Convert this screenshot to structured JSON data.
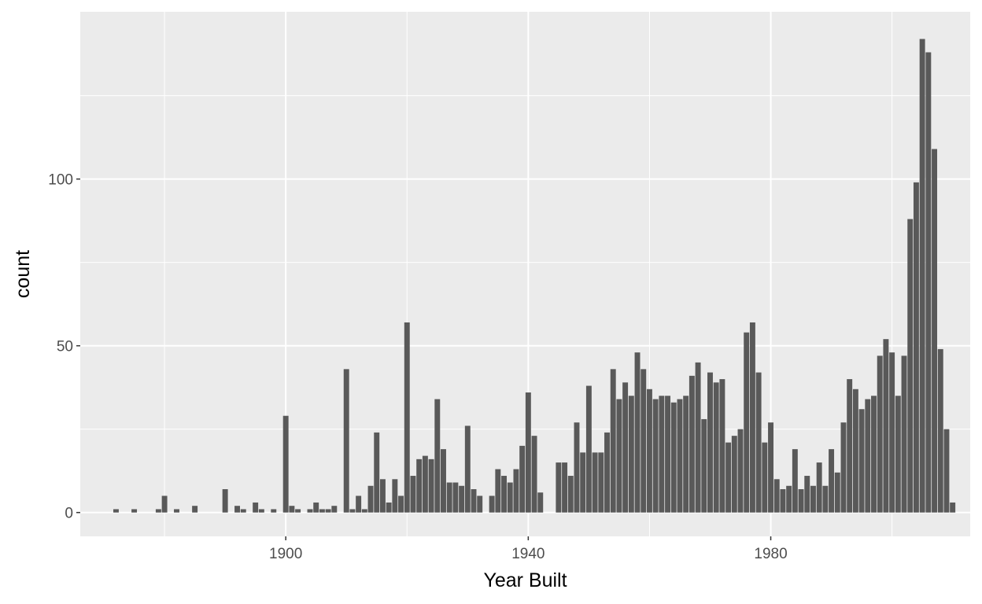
{
  "chart_data": {
    "type": "bar",
    "title": "",
    "xlabel": "Year Built",
    "ylabel": "count",
    "xlim": [
      1866.1,
      2012.9
    ],
    "ylim": [
      -7.15,
      150.15
    ],
    "x_ticks": [
      1900,
      1940,
      1980
    ],
    "x_minor_ticks": [
      1880,
      1920,
      1960,
      2000
    ],
    "y_ticks": [
      0,
      50,
      100
    ],
    "y_minor_ticks": [
      25,
      75,
      125
    ],
    "grid": true,
    "legend": "none",
    "colors": {
      "bar": "#595959",
      "panel": "#ebebeb",
      "grid": "#ffffff"
    },
    "x": [
      1872,
      1875,
      1879,
      1880,
      1882,
      1885,
      1890,
      1892,
      1893,
      1895,
      1896,
      1898,
      1900,
      1901,
      1902,
      1904,
      1905,
      1906,
      1907,
      1908,
      1910,
      1911,
      1912,
      1913,
      1914,
      1915,
      1916,
      1917,
      1918,
      1919,
      1920,
      1921,
      1922,
      1923,
      1924,
      1925,
      1926,
      1927,
      1928,
      1929,
      1930,
      1931,
      1932,
      1934,
      1935,
      1936,
      1937,
      1938,
      1939,
      1940,
      1941,
      1942,
      1945,
      1946,
      1947,
      1948,
      1949,
      1950,
      1951,
      1952,
      1953,
      1954,
      1955,
      1956,
      1957,
      1958,
      1959,
      1960,
      1961,
      1962,
      1963,
      1964,
      1965,
      1966,
      1967,
      1968,
      1969,
      1970,
      1971,
      1972,
      1973,
      1974,
      1975,
      1976,
      1977,
      1978,
      1979,
      1980,
      1981,
      1982,
      1983,
      1984,
      1985,
      1986,
      1987,
      1988,
      1989,
      1990,
      1991,
      1992,
      1993,
      1994,
      1995,
      1996,
      1997,
      1998,
      1999,
      2000,
      2001,
      2002,
      2003,
      2004,
      2005,
      2006,
      2007,
      2008,
      2009,
      2010
    ],
    "values": [
      1,
      1,
      1,
      5,
      1,
      2,
      7,
      2,
      1,
      3,
      1,
      1,
      29,
      2,
      1,
      1,
      3,
      1,
      1,
      2,
      43,
      1,
      5,
      1,
      8,
      24,
      10,
      3,
      10,
      5,
      57,
      11,
      16,
      17,
      16,
      34,
      19,
      9,
      9,
      8,
      26,
      7,
      5,
      5,
      13,
      11,
      9,
      13,
      20,
      36,
      23,
      6,
      15,
      15,
      11,
      27,
      18,
      38,
      18,
      18,
      24,
      43,
      34,
      39,
      35,
      48,
      43,
      37,
      34,
      35,
      35,
      33,
      34,
      35,
      41,
      45,
      28,
      42,
      39,
      40,
      21,
      23,
      25,
      54,
      57,
      42,
      21,
      27,
      10,
      7,
      8,
      19,
      7,
      11,
      8,
      15,
      8,
      19,
      12,
      27,
      40,
      37,
      31,
      34,
      35,
      47,
      52,
      48,
      35,
      47,
      88,
      99,
      142,
      138,
      109,
      49,
      25,
      3
    ]
  }
}
